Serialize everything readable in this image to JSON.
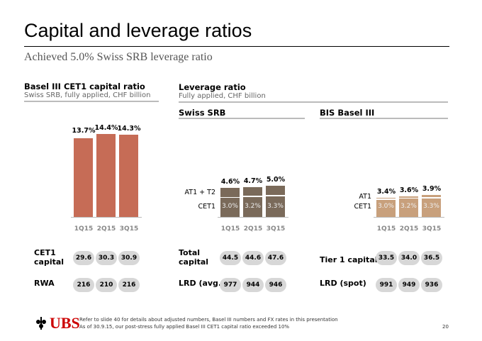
{
  "header": {
    "title": "Capital and leverage ratios",
    "subtitle": "Achieved 5.0% Swiss SRB leverage ratio"
  },
  "cet1_panel": {
    "title": "Basel III CET1 capital ratio",
    "subtitle": "Swiss SRB, fully applied, CHF billion"
  },
  "leverage_panel": {
    "title": "Leverage ratio",
    "subtitle": "Fully applied, CHF billion",
    "swiss_title": "Swiss SRB",
    "bis_title": "BIS Basel III"
  },
  "chart_data": [
    {
      "type": "bar",
      "title": "Basel III CET1 capital ratio",
      "categories": [
        "1Q15",
        "2Q15",
        "3Q15"
      ],
      "values": [
        13.7,
        14.4,
        14.3
      ],
      "labels": [
        "13.7%",
        "14.4%",
        "14.3%"
      ],
      "color": "#c66c56"
    },
    {
      "type": "bar",
      "stacked": true,
      "title": "Swiss SRB",
      "categories": [
        "1Q15",
        "2Q15",
        "3Q15"
      ],
      "series": [
        {
          "name": "CET1",
          "values": [
            3.0,
            3.2,
            3.3
          ],
          "labels": [
            "3.0%",
            "3.2%",
            "3.3%"
          ]
        },
        {
          "name": "AT1 + T2",
          "values": [
            1.6,
            1.5,
            1.7
          ]
        }
      ],
      "totals": [
        "4.6%",
        "4.7%",
        "5.0%"
      ],
      "total_values": [
        4.6,
        4.7,
        5.0
      ],
      "color": "#7a6a5a"
    },
    {
      "type": "bar",
      "stacked": true,
      "title": "BIS Basel III",
      "categories": [
        "1Q15",
        "2Q15",
        "3Q15"
      ],
      "series": [
        {
          "name": "CET1",
          "values": [
            3.0,
            3.2,
            3.3
          ],
          "labels": [
            "3.0%",
            "3.2%",
            "3.3%"
          ]
        },
        {
          "name": "AT1",
          "values": [
            0.4,
            0.4,
            0.6
          ]
        }
      ],
      "totals": [
        "3.4%",
        "3.6%",
        "3.9%"
      ],
      "total_values": [
        3.4,
        3.6,
        3.9
      ],
      "color": "#c8a07c"
    }
  ],
  "metrics": [
    {
      "label": "CET1 capital",
      "values": [
        "29.6",
        "30.3",
        "30.9"
      ]
    },
    {
      "label": "RWA",
      "values": [
        "216",
        "210",
        "216"
      ]
    },
    {
      "label": "Total capital",
      "values": [
        "44.5",
        "44.6",
        "47.6"
      ]
    },
    {
      "label": "LRD (avg.)",
      "values": [
        "977",
        "944",
        "946"
      ]
    },
    {
      "label": "Tier 1 capital",
      "values": [
        "33.5",
        "34.0",
        "36.5"
      ]
    },
    {
      "label": "LRD (spot)",
      "values": [
        "991",
        "949",
        "936"
      ]
    }
  ],
  "footer": {
    "logo": "UBS",
    "note1": "Refer to slide 40 for details about adjusted numbers, Basel III numbers and FX rates in this presentation",
    "note2": "As of 30.9.15, our post-stress fully applied Basel III CET1 capital ratio exceeded 10%",
    "page": "20"
  }
}
